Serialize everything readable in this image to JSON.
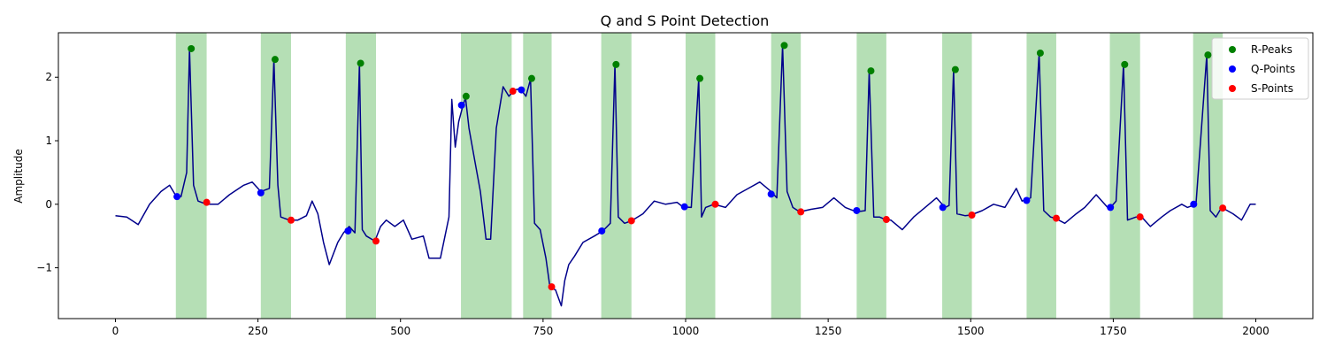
{
  "chart_data": {
    "type": "line",
    "title": "Q and S Point Detection",
    "xlabel": "",
    "ylabel": "Amplitude",
    "xlim": [
      -100,
      2100
    ],
    "ylim": [
      -1.8,
      2.7
    ],
    "x_ticks": [
      0,
      250,
      500,
      750,
      1000,
      1250,
      1500,
      1750,
      2000
    ],
    "y_ticks": [
      -1,
      0,
      1,
      2
    ],
    "y_tick_labels": [
      "−1",
      "0",
      "1",
      "2"
    ],
    "grid": false,
    "legend_position": "top-right",
    "signal": {
      "color": "#00008b",
      "points": [
        [
          0,
          -0.18
        ],
        [
          20,
          -0.2
        ],
        [
          40,
          -0.32
        ],
        [
          60,
          0.0
        ],
        [
          80,
          0.2
        ],
        [
          95,
          0.3
        ],
        [
          105,
          0.15
        ],
        [
          115,
          0.12
        ],
        [
          125,
          0.5
        ],
        [
          130,
          2.45
        ],
        [
          137,
          0.3
        ],
        [
          145,
          0.05
        ],
        [
          160,
          0.0
        ],
        [
          180,
          0.0
        ],
        [
          200,
          0.15
        ],
        [
          225,
          0.3
        ],
        [
          240,
          0.35
        ],
        [
          255,
          0.2
        ],
        [
          270,
          0.25
        ],
        [
          278,
          2.28
        ],
        [
          285,
          0.3
        ],
        [
          290,
          -0.2
        ],
        [
          305,
          -0.25
        ],
        [
          320,
          -0.25
        ],
        [
          335,
          -0.18
        ],
        [
          345,
          0.05
        ],
        [
          355,
          -0.15
        ],
        [
          365,
          -0.6
        ],
        [
          375,
          -0.95
        ],
        [
          390,
          -0.6
        ],
        [
          400,
          -0.45
        ],
        [
          410,
          -0.35
        ],
        [
          420,
          -0.45
        ],
        [
          428,
          2.22
        ],
        [
          433,
          -0.4
        ],
        [
          440,
          -0.5
        ],
        [
          455,
          -0.58
        ],
        [
          465,
          -0.35
        ],
        [
          475,
          -0.25
        ],
        [
          490,
          -0.35
        ],
        [
          505,
          -0.25
        ],
        [
          520,
          -0.55
        ],
        [
          540,
          -0.5
        ],
        [
          550,
          -0.85
        ],
        [
          570,
          -0.85
        ],
        [
          585,
          -0.2
        ],
        [
          590,
          1.65
        ],
        [
          596,
          0.9
        ],
        [
          602,
          1.3
        ],
        [
          608,
          1.5
        ],
        [
          614,
          1.68
        ],
        [
          620,
          1.2
        ],
        [
          630,
          0.7
        ],
        [
          640,
          0.2
        ],
        [
          650,
          -0.55
        ],
        [
          658,
          -0.55
        ],
        [
          668,
          1.2
        ],
        [
          680,
          1.85
        ],
        [
          690,
          1.7
        ],
        [
          700,
          1.8
        ],
        [
          710,
          1.82
        ],
        [
          720,
          1.7
        ],
        [
          728,
          1.97
        ],
        [
          735,
          -0.3
        ],
        [
          745,
          -0.4
        ],
        [
          755,
          -0.85
        ],
        [
          762,
          -1.3
        ],
        [
          772,
          -1.35
        ],
        [
          782,
          -1.6
        ],
        [
          788,
          -1.2
        ],
        [
          795,
          -0.95
        ],
        [
          805,
          -0.82
        ],
        [
          820,
          -0.6
        ],
        [
          840,
          -0.5
        ],
        [
          855,
          -0.42
        ],
        [
          868,
          -0.3
        ],
        [
          876,
          2.2
        ],
        [
          882,
          -0.2
        ],
        [
          893,
          -0.3
        ],
        [
          905,
          -0.26
        ],
        [
          925,
          -0.15
        ],
        [
          945,
          0.05
        ],
        [
          965,
          0.0
        ],
        [
          985,
          0.03
        ],
        [
          995,
          -0.04
        ],
        [
          1010,
          -0.05
        ],
        [
          1023,
          1.98
        ],
        [
          1028,
          -0.2
        ],
        [
          1035,
          -0.05
        ],
        [
          1050,
          0.0
        ],
        [
          1070,
          -0.05
        ],
        [
          1090,
          0.15
        ],
        [
          1110,
          0.25
        ],
        [
          1130,
          0.35
        ],
        [
          1150,
          0.2
        ],
        [
          1160,
          0.1
        ],
        [
          1170,
          2.5
        ],
        [
          1178,
          0.2
        ],
        [
          1188,
          -0.05
        ],
        [
          1200,
          -0.12
        ],
        [
          1220,
          -0.08
        ],
        [
          1240,
          -0.05
        ],
        [
          1260,
          0.1
        ],
        [
          1280,
          -0.05
        ],
        [
          1300,
          -0.12
        ],
        [
          1315,
          -0.1
        ],
        [
          1322,
          2.1
        ],
        [
          1330,
          -0.2
        ],
        [
          1340,
          -0.2
        ],
        [
          1350,
          -0.24
        ],
        [
          1360,
          -0.25
        ],
        [
          1380,
          -0.4
        ],
        [
          1400,
          -0.2
        ],
        [
          1420,
          -0.05
        ],
        [
          1440,
          0.1
        ],
        [
          1455,
          -0.05
        ],
        [
          1462,
          -0.02
        ],
        [
          1470,
          2.12
        ],
        [
          1476,
          -0.15
        ],
        [
          1490,
          -0.18
        ],
        [
          1500,
          -0.17
        ],
        [
          1520,
          -0.1
        ],
        [
          1540,
          0.0
        ],
        [
          1560,
          -0.05
        ],
        [
          1580,
          0.25
        ],
        [
          1590,
          0.05
        ],
        [
          1605,
          0.1
        ],
        [
          1620,
          2.38
        ],
        [
          1628,
          -0.1
        ],
        [
          1640,
          -0.2
        ],
        [
          1648,
          -0.22
        ],
        [
          1665,
          -0.3
        ],
        [
          1685,
          -0.15
        ],
        [
          1700,
          -0.05
        ],
        [
          1720,
          0.15
        ],
        [
          1740,
          -0.05
        ],
        [
          1745,
          -0.05
        ],
        [
          1755,
          0.05
        ],
        [
          1768,
          2.2
        ],
        [
          1775,
          -0.25
        ],
        [
          1790,
          -0.2
        ],
        [
          1800,
          -0.2
        ],
        [
          1815,
          -0.35
        ],
        [
          1835,
          -0.2
        ],
        [
          1850,
          -0.1
        ],
        [
          1870,
          0.0
        ],
        [
          1880,
          -0.05
        ],
        [
          1895,
          0.0
        ],
        [
          1914,
          2.35
        ],
        [
          1920,
          -0.1
        ],
        [
          1930,
          -0.2
        ],
        [
          1940,
          -0.05
        ],
        [
          1960,
          -0.15
        ],
        [
          1975,
          -0.25
        ],
        [
          1990,
          0.0
        ],
        [
          2000,
          0.0
        ]
      ]
    },
    "shaded_regions": {
      "color": "#5cb85c",
      "opacity": 0.45,
      "ranges": [
        [
          106,
          160
        ],
        [
          255,
          308
        ],
        [
          404,
          457
        ],
        [
          606,
          695
        ],
        [
          715,
          765
        ],
        [
          852,
          905
        ],
        [
          1000,
          1052
        ],
        [
          1150,
          1202
        ],
        [
          1300,
          1352
        ],
        [
          1450,
          1502
        ],
        [
          1598,
          1650
        ],
        [
          1744,
          1797
        ],
        [
          1890,
          1942
        ]
      ]
    },
    "series": [
      {
        "name": "R-Peaks",
        "color": "#008000",
        "points": [
          [
            133,
            2.45
          ],
          [
            280,
            2.28
          ],
          [
            430,
            2.22
          ],
          [
            615,
            1.7
          ],
          [
            730,
            1.98
          ],
          [
            878,
            2.2
          ],
          [
            1025,
            1.98
          ],
          [
            1173,
            2.5
          ],
          [
            1325,
            2.1
          ],
          [
            1473,
            2.12
          ],
          [
            1622,
            2.38
          ],
          [
            1770,
            2.2
          ],
          [
            1916,
            2.35
          ]
        ]
      },
      {
        "name": "Q-Points",
        "color": "#0000ff",
        "points": [
          [
            108,
            0.12
          ],
          [
            255,
            0.18
          ],
          [
            408,
            -0.42
          ],
          [
            607,
            1.56
          ],
          [
            712,
            1.8
          ],
          [
            853,
            -0.42
          ],
          [
            998,
            -0.04
          ],
          [
            1150,
            0.16
          ],
          [
            1300,
            -0.1
          ],
          [
            1451,
            -0.05
          ],
          [
            1598,
            0.06
          ],
          [
            1745,
            -0.05
          ],
          [
            1891,
            0.0
          ]
        ]
      },
      {
        "name": "S-Points",
        "color": "#ff0000",
        "points": [
          [
            160,
            0.03
          ],
          [
            308,
            -0.25
          ],
          [
            457,
            -0.58
          ],
          [
            697,
            1.78
          ],
          [
            765,
            -1.3
          ],
          [
            905,
            -0.26
          ],
          [
            1052,
            0.0
          ],
          [
            1202,
            -0.12
          ],
          [
            1352,
            -0.24
          ],
          [
            1502,
            -0.17
          ],
          [
            1650,
            -0.22
          ],
          [
            1797,
            -0.2
          ],
          [
            1942,
            -0.06
          ]
        ]
      }
    ]
  }
}
